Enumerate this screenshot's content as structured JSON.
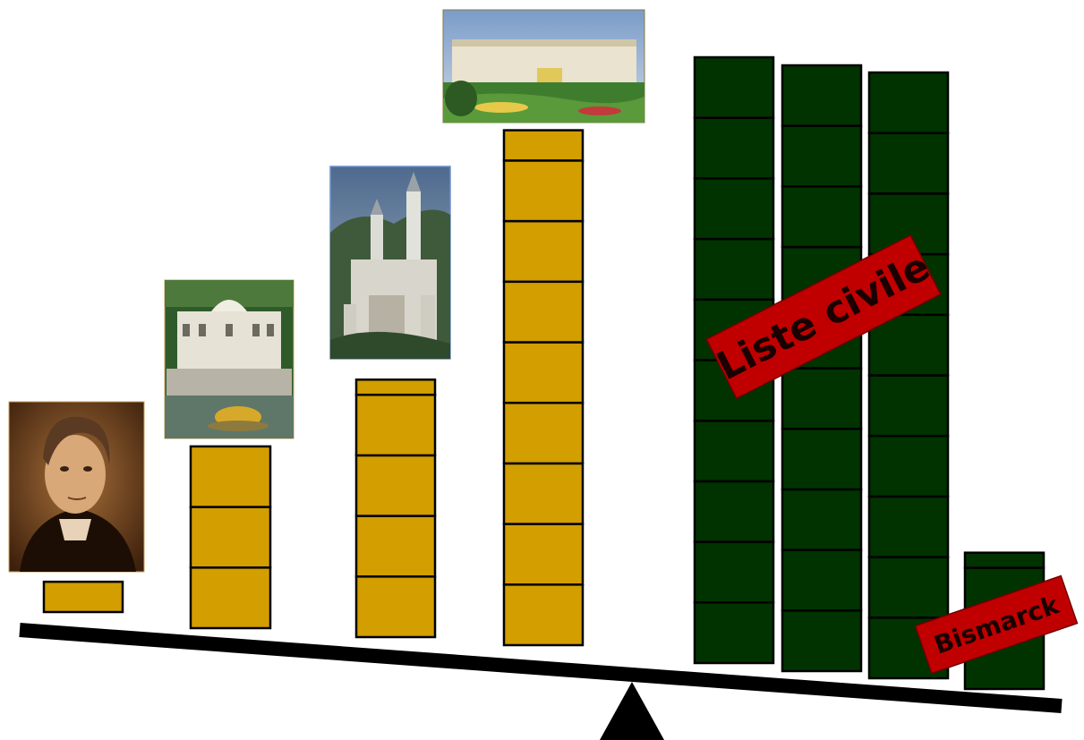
{
  "labels": {
    "civil_list": "Liste civile",
    "bismarck": "Bismarck"
  },
  "colors": {
    "expense_block": "#D29E00",
    "income_block": "#003300",
    "label_background": "#C00000",
    "beam": "#000000",
    "fulcrum": "#000000"
  },
  "pictures": [
    {
      "key": "portrait",
      "icon": "portrait-photo-icon"
    },
    {
      "key": "palace_1",
      "icon": "palace-photo-icon"
    },
    {
      "key": "castle",
      "icon": "castle-photo-icon"
    },
    {
      "key": "palace_2",
      "icon": "palace-photo-icon"
    }
  ],
  "stacks": {
    "expenses": [
      {
        "blocks": 0.5
      },
      {
        "blocks": 3
      },
      {
        "blocks": 4.25
      },
      {
        "blocks": 8.5
      }
    ],
    "income": [
      {
        "blocks": 10
      },
      {
        "blocks": 10
      },
      {
        "blocks": 10
      },
      {
        "blocks": 2.25
      }
    ]
  }
}
